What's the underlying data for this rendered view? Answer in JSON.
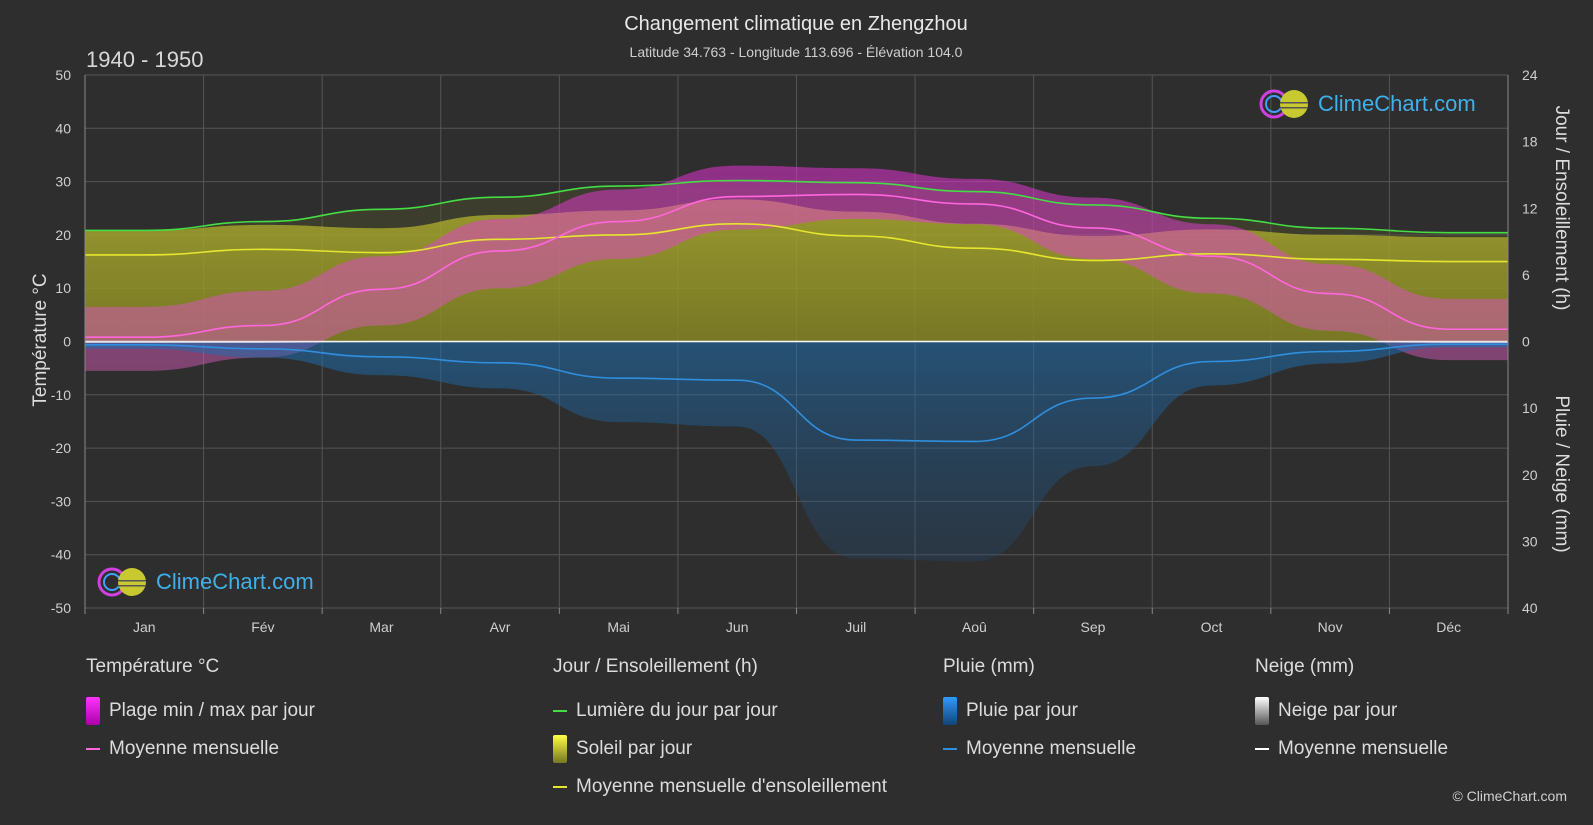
{
  "header": {
    "title": "Changement climatique en Zhengzhou",
    "subtitle": "Latitude 34.763 - Longitude 113.696 - Élévation 104.0",
    "period": "1940 - 1950"
  },
  "brand": {
    "name": "ClimeChart.com",
    "copyright": "© ClimeChart.com"
  },
  "chart_data": {
    "type": "area",
    "categories": [
      "Jan",
      "Fév",
      "Mar",
      "Avr",
      "Mai",
      "Jun",
      "Juil",
      "Aoû",
      "Sep",
      "Oct",
      "Nov",
      "Déc"
    ],
    "axes": {
      "left": {
        "label": "Température °C",
        "min": -50,
        "max": 50,
        "ticks": [
          50,
          40,
          30,
          20,
          10,
          0,
          -10,
          -20,
          -30,
          -40,
          -50
        ]
      },
      "right_top": {
        "label": "Jour / Ensoleillement (h)",
        "min": 0,
        "max": 24,
        "ticks": [
          24,
          18,
          12,
          6,
          0
        ]
      },
      "right_bottom": {
        "label": "Pluie / Neige (mm)",
        "min": 0,
        "max": 40,
        "ticks": [
          0,
          10,
          20,
          30,
          40
        ]
      }
    },
    "grid": true,
    "series": [
      {
        "name": "Lumière du jour par jour",
        "axis": "hours",
        "color": "#44dd44",
        "values": [
          10.0,
          10.8,
          11.9,
          13.0,
          14.0,
          14.5,
          14.3,
          13.5,
          12.3,
          11.1,
          10.2,
          9.8
        ]
      },
      {
        "name": "Moyenne mensuelle d'ensoleillement",
        "axis": "hours",
        "color": "#e6e62e",
        "values": [
          7.8,
          8.3,
          8.0,
          9.2,
          9.6,
          10.6,
          9.5,
          8.4,
          7.3,
          7.9,
          7.4,
          7.2
        ]
      },
      {
        "name": "Moyenne mensuelle",
        "group": "Température °C",
        "axis": "temperature",
        "color": "#ff66dd",
        "values": [
          0.8,
          3.0,
          9.8,
          17.0,
          22.5,
          27.2,
          27.6,
          25.8,
          21.3,
          16.0,
          9.0,
          2.3
        ]
      },
      {
        "name": "Moyenne mensuelle",
        "group": "Pluie (mm)",
        "axis": "precip",
        "color": "#2f8fdf",
        "values": [
          0.5,
          1.1,
          2.3,
          3.2,
          5.5,
          5.8,
          14.8,
          15.0,
          8.5,
          3.0,
          1.5,
          0.4
        ]
      },
      {
        "name": "Moyenne mensuelle",
        "group": "Neige (mm)",
        "axis": "precip",
        "color": "#ffffff",
        "values": [
          0.1,
          0.1,
          0.0,
          0.0,
          0.0,
          0.0,
          0.0,
          0.0,
          0.0,
          0.0,
          0.0,
          0.1
        ]
      },
      {
        "name": "Plage min / max par jour",
        "group": "Température °C",
        "axis": "temperature",
        "color": "#dd22dd",
        "min": [
          -5.5,
          -3.0,
          3.0,
          10.0,
          15.5,
          21.0,
          23.0,
          22.0,
          15.5,
          9.0,
          2.0,
          -3.5
        ],
        "max": [
          6.5,
          9.5,
          16.0,
          23.0,
          28.5,
          33.0,
          32.5,
          30.5,
          27.0,
          22.0,
          14.5,
          8.0
        ]
      }
    ]
  },
  "legend": {
    "groups": [
      {
        "title": "Température °C",
        "items": [
          {
            "label": "Plage min / max par jour",
            "swatch": "box",
            "color": "#dd22dd"
          },
          {
            "label": "Moyenne mensuelle",
            "swatch": "line",
            "color": "#ff66dd"
          }
        ]
      },
      {
        "title": "Jour / Ensoleillement (h)",
        "items": [
          {
            "label": "Lumière du jour par jour",
            "swatch": "line",
            "color": "#44dd44"
          },
          {
            "label": "Soleil par jour",
            "swatch": "box",
            "color": "#c8c830"
          },
          {
            "label": "Moyenne mensuelle d'ensoleillement",
            "swatch": "line",
            "color": "#e6e62e"
          }
        ]
      },
      {
        "title": "Pluie (mm)",
        "items": [
          {
            "label": "Pluie par jour",
            "swatch": "box",
            "color": "#2f8fdf"
          },
          {
            "label": "Moyenne mensuelle",
            "swatch": "line",
            "color": "#2f8fdf"
          }
        ]
      },
      {
        "title": "Neige (mm)",
        "items": [
          {
            "label": "Neige par jour",
            "swatch": "box",
            "color": "#dddddd"
          },
          {
            "label": "Moyenne mensuelle",
            "swatch": "line",
            "color": "#ffffff"
          }
        ]
      }
    ]
  }
}
